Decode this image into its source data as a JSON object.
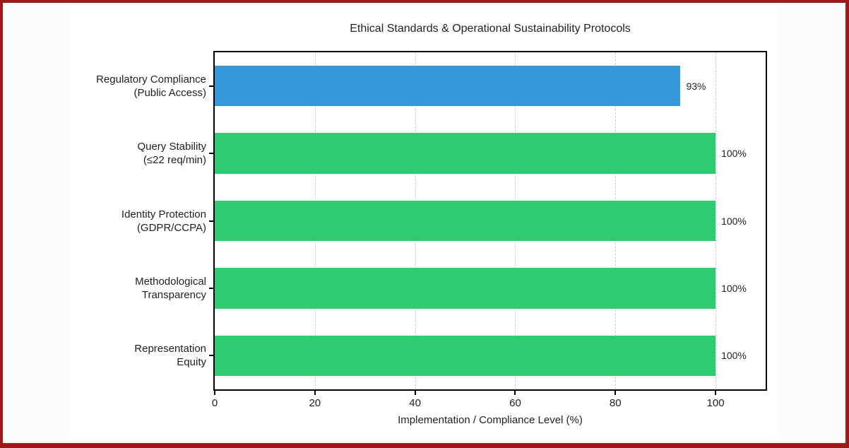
{
  "page": {
    "border_color": "#9e1a1a",
    "background_color": "#fcfcfc",
    "card_background_color": "#ffffff"
  },
  "chart_data": {
    "type": "bar",
    "orientation": "horizontal",
    "title": "Ethical Standards & Operational Sustainability Protocols",
    "xlabel": "Implementation / Compliance Level (%)",
    "ylabel": "",
    "xlim": [
      0,
      110
    ],
    "xticks": [
      0,
      20,
      40,
      60,
      80,
      100
    ],
    "grid": "vertical dashed gridlines at x ticks",
    "legend": "none",
    "categories": [
      [
        "Regulatory Compliance",
        "(Public Access)"
      ],
      [
        "Query Stability",
        "(≤22 req/min)"
      ],
      [
        "Identity Protection",
        "(GDPR/CCPA)"
      ],
      [
        "Methodological",
        "Transparency"
      ],
      [
        "Representation",
        "Equity"
      ]
    ],
    "values": [
      93,
      100,
      100,
      100,
      100
    ],
    "value_labels": [
      "93%",
      "100%",
      "100%",
      "100%",
      "100%"
    ],
    "bar_colors": [
      "#3498db",
      "#2ecc71",
      "#2ecc71",
      "#2ecc71",
      "#2ecc71"
    ],
    "grid_color": "#cccccc",
    "spine_color": "#000000",
    "text_color": "#1f1f1f"
  }
}
